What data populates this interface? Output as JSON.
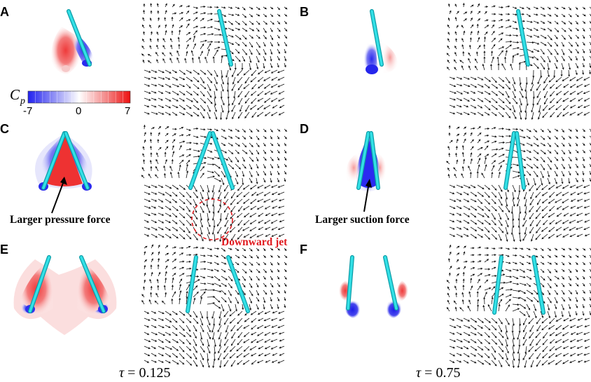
{
  "panels": [
    {
      "label": "A",
      "layout": "single",
      "phase": "pressure-flap"
    },
    {
      "label": "B",
      "layout": "single",
      "phase": "suction-flap"
    },
    {
      "label": "C",
      "layout": "v",
      "phase": "pressure-wedge"
    },
    {
      "label": "D",
      "layout": "v",
      "phase": "suction-wedge"
    },
    {
      "label": "E",
      "layout": "splay",
      "phase": "pressure-splay"
    },
    {
      "label": "F",
      "layout": "splay",
      "phase": "suction-splay"
    }
  ],
  "colorbar": {
    "symbol": "C",
    "subscript": "p",
    "ticks": [
      "-7",
      "0",
      "7"
    ],
    "min": -7,
    "max": 7,
    "colors": [
      "#1a1aff",
      "#ffffff",
      "#ee1111"
    ]
  },
  "annotations": {
    "pressure": "Larger pressure force",
    "suction": "Larger suction force",
    "jet": "Downward jet"
  },
  "time_labels": [
    {
      "symbol": "τ",
      "text": " = 0.125"
    },
    {
      "symbol": "τ",
      "text": " = 0.75"
    }
  ],
  "colors": {
    "plate": "#33e0e6",
    "plate_edge": "#0a9aa5",
    "arrow": "#111111",
    "jet_circle": "#e0191e"
  }
}
